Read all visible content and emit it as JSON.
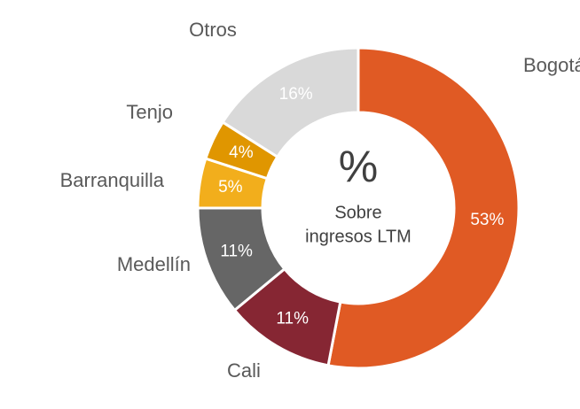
{
  "chart_data": {
    "type": "donut",
    "categories": [
      "Bogotá",
      "Cali",
      "Medellín",
      "Barranquilla",
      "Tenjo",
      "Otros"
    ],
    "values": [
      53,
      11,
      11,
      5,
      4,
      16
    ],
    "value_labels": [
      "53%",
      "11%",
      "11%",
      "5%",
      "4%",
      "16%"
    ],
    "colors": [
      "#e05a24",
      "#862633",
      "#666666",
      "#f2ae1c",
      "#e09600",
      "#d9d9d9"
    ],
    "center_symbol": "%",
    "center_text": [
      "Sobre",
      "ingresos LTM"
    ]
  }
}
